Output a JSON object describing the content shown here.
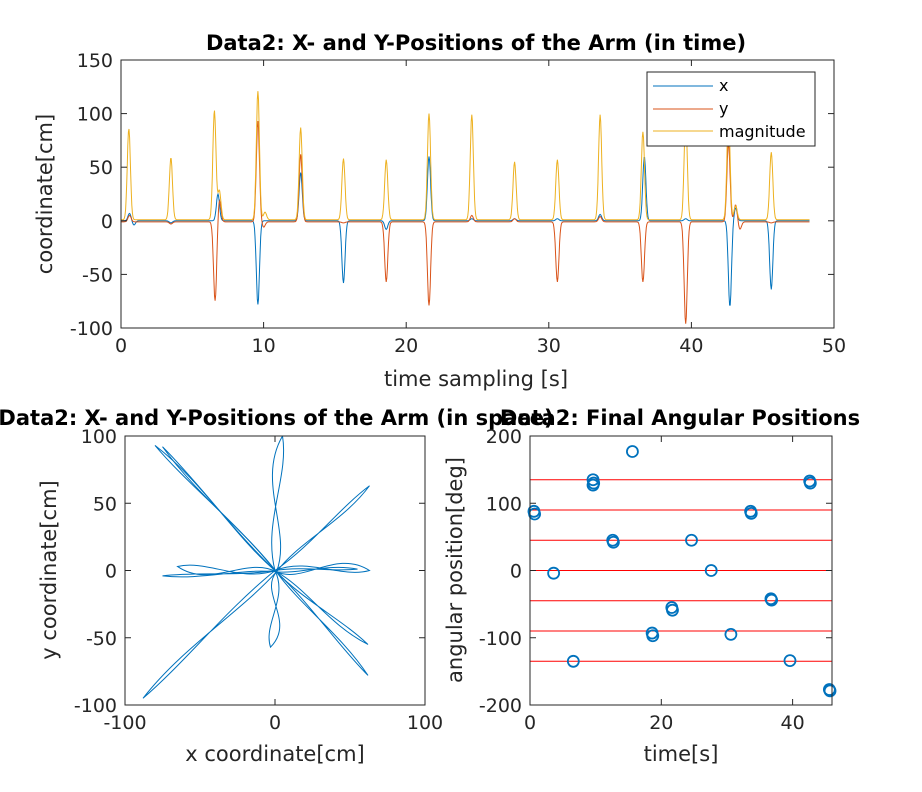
{
  "chart_data": [
    {
      "type": "line",
      "title": "Data2: X- and Y-Positions of the Arm (in time)",
      "xlabel": "time sampling [s]",
      "ylabel": "coordinate[cm]",
      "xlim": [
        0,
        50
      ],
      "ylim": [
        -100,
        150
      ],
      "xticks": [
        0,
        10,
        20,
        30,
        40,
        50
      ],
      "yticks": [
        -100,
        -50,
        0,
        50,
        100,
        150
      ],
      "legend_position": "top-right",
      "grid": false,
      "series": [
        {
          "name": "x",
          "color": "#0072BD",
          "peaks": [
            [
              0.6,
              7
            ],
            [
              0.9,
              -4
            ],
            [
              3.5,
              -2
            ],
            [
              6.8,
              25
            ],
            [
              9.6,
              -78
            ],
            [
              12.6,
              45
            ],
            [
              15.6,
              -58
            ],
            [
              18.6,
              -8
            ],
            [
              21.6,
              60
            ],
            [
              24.6,
              2
            ],
            [
              27.6,
              2
            ],
            [
              30.6,
              2
            ],
            [
              33.6,
              6
            ],
            [
              36.7,
              60
            ],
            [
              39.6,
              2
            ],
            [
              42.7,
              -80
            ],
            [
              43.1,
              12
            ],
            [
              45.6,
              -64
            ]
          ]
        },
        {
          "name": "y",
          "color": "#D95319",
          "peaks": [
            [
              0.6,
              5
            ],
            [
              3.5,
              -3
            ],
            [
              6.6,
              -75
            ],
            [
              6.9,
              20
            ],
            [
              9.6,
              93
            ],
            [
              10.0,
              -6
            ],
            [
              12.6,
              62
            ],
            [
              15.6,
              -2
            ],
            [
              18.6,
              -57
            ],
            [
              21.6,
              -79
            ],
            [
              24.6,
              5
            ],
            [
              27.6,
              2
            ],
            [
              30.6,
              -57
            ],
            [
              33.6,
              4
            ],
            [
              36.6,
              -57
            ],
            [
              39.6,
              -96
            ],
            [
              42.6,
              73
            ],
            [
              43.1,
              15
            ],
            [
              43.4,
              -8
            ],
            [
              45.6,
              -2
            ]
          ]
        },
        {
          "name": "magnitude",
          "color": "#EDB120",
          "peaks": [
            [
              0.55,
              86
            ],
            [
              3.5,
              59
            ],
            [
              6.55,
              103
            ],
            [
              6.9,
              28
            ],
            [
              9.6,
              121
            ],
            [
              10.1,
              8
            ],
            [
              12.6,
              87
            ],
            [
              15.6,
              58
            ],
            [
              18.6,
              57
            ],
            [
              21.6,
              100
            ],
            [
              24.6,
              99
            ],
            [
              27.6,
              55
            ],
            [
              30.6,
              57
            ],
            [
              33.6,
              99
            ],
            [
              36.6,
              83
            ],
            [
              39.6,
              98
            ],
            [
              42.6,
              100
            ],
            [
              43.1,
              14
            ],
            [
              45.6,
              64
            ]
          ]
        }
      ]
    },
    {
      "type": "line",
      "title": "Data2: X- and Y-Positions of the Arm (in space)",
      "xlabel": "x coordinate[cm]",
      "ylabel": "y coordinate[cm]",
      "xlim": [
        -100,
        100
      ],
      "ylim": [
        -100,
        100
      ],
      "xticks": [
        -100,
        0,
        100
      ],
      "yticks": [
        -100,
        -50,
        0,
        50,
        100
      ],
      "color": "#0072BD",
      "reach_endpoints": [
        [
          -80,
          93
        ],
        [
          -75,
          92
        ],
        [
          5,
          100
        ],
        [
          63,
          63
        ],
        [
          55,
          1
        ],
        [
          63,
          0
        ],
        [
          62,
          -55
        ],
        [
          62,
          -78
        ],
        [
          -3,
          -57
        ],
        [
          -88,
          -95
        ],
        [
          -75,
          -4
        ],
        [
          -65,
          3
        ]
      ]
    },
    {
      "type": "scatter",
      "title": "Data2: Final Angular Positions",
      "xlabel": "time[s]",
      "ylabel": "angular position[deg]",
      "xlim": [
        0,
        46
      ],
      "ylim": [
        -200,
        200
      ],
      "xticks": [
        0,
        20,
        40
      ],
      "yticks": [
        -200,
        -100,
        0,
        100,
        200
      ],
      "target_lines": [
        -135,
        -90,
        -45,
        0,
        45,
        90,
        135
      ],
      "target_line_color": "#ff0000",
      "marker_color": "#0072BD",
      "points": [
        [
          0.6,
          88
        ],
        [
          0.7,
          84
        ],
        [
          3.6,
          -4
        ],
        [
          6.6,
          -135
        ],
        [
          9.6,
          135
        ],
        [
          9.7,
          130
        ],
        [
          9.6,
          127
        ],
        [
          12.6,
          45
        ],
        [
          12.7,
          42
        ],
        [
          15.6,
          177
        ],
        [
          18.6,
          -93
        ],
        [
          18.7,
          -97
        ],
        [
          21.6,
          -55
        ],
        [
          21.7,
          -59
        ],
        [
          24.6,
          45
        ],
        [
          27.6,
          0
        ],
        [
          30.6,
          -95
        ],
        [
          33.6,
          88
        ],
        [
          33.7,
          85
        ],
        [
          36.7,
          -42
        ],
        [
          36.8,
          -44
        ],
        [
          39.6,
          -134
        ],
        [
          42.6,
          133
        ],
        [
          42.7,
          130
        ],
        [
          45.6,
          -177
        ],
        [
          45.7,
          -179
        ]
      ]
    }
  ]
}
